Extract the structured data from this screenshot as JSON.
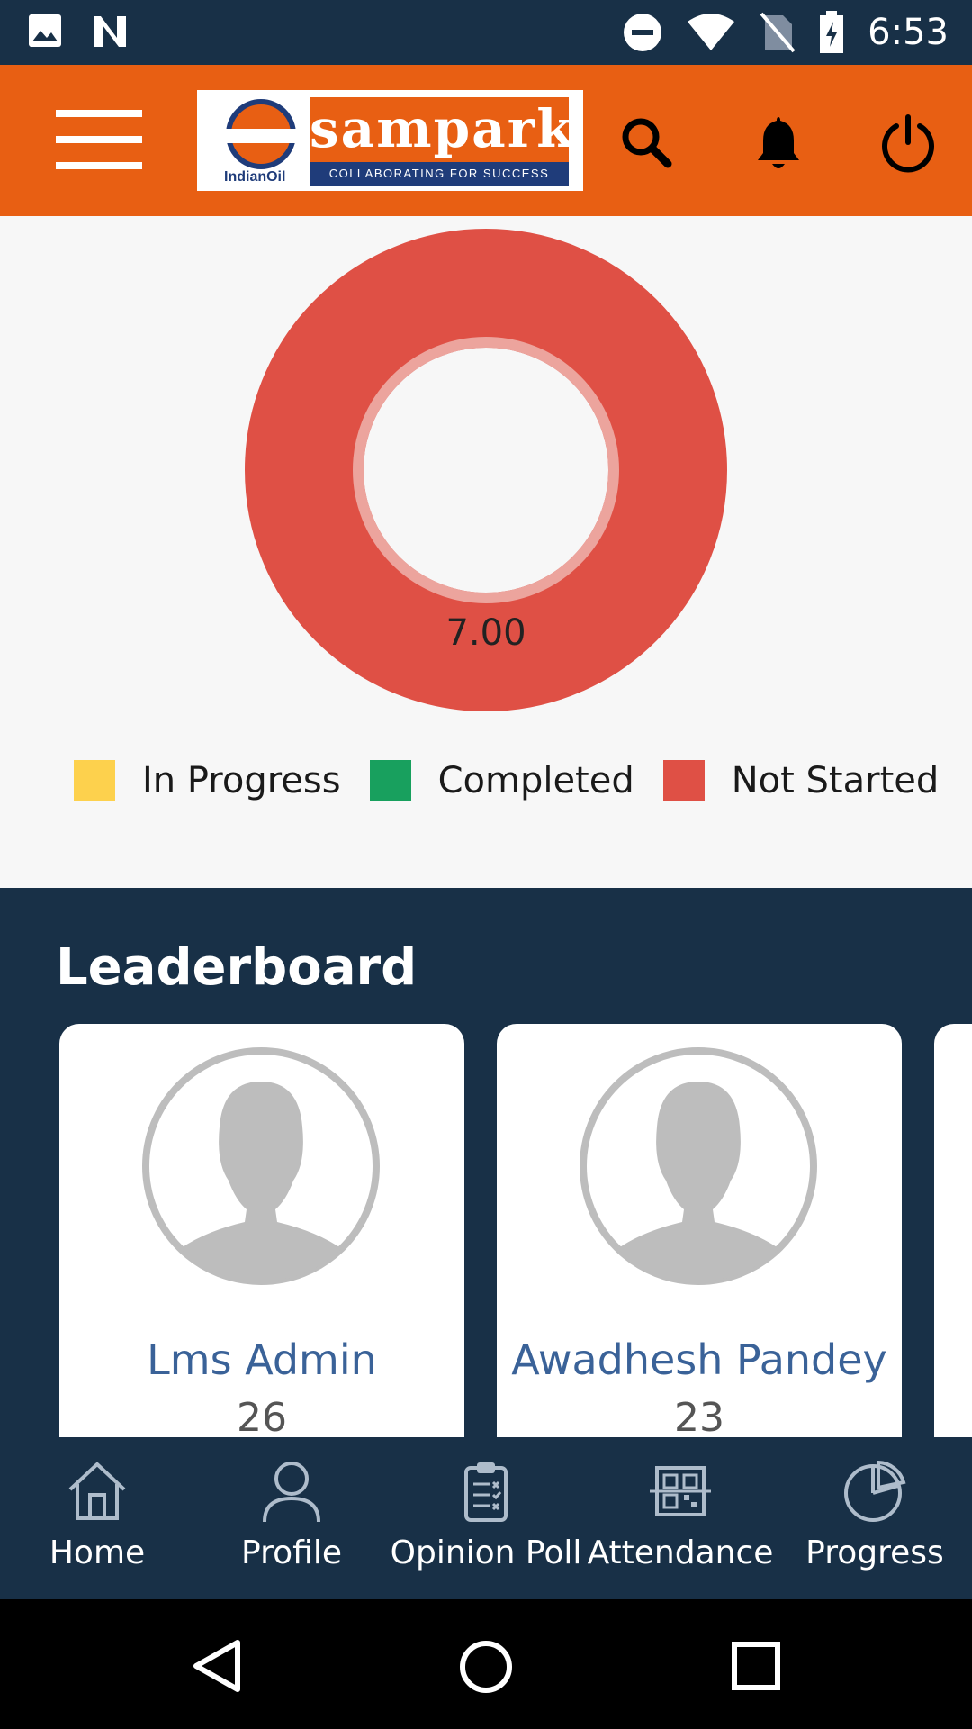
{
  "status_bar": {
    "time": "6:53",
    "icons": [
      "image-icon",
      "n-icon",
      "dnd-icon",
      "wifi-icon",
      "no-sim-icon",
      "battery-charging-icon"
    ]
  },
  "header": {
    "logo": {
      "company": "IndianOil",
      "brand": "sampark",
      "tagline": "COLLABORATING FOR SUCCESS"
    },
    "icons": [
      "menu-icon",
      "search-icon",
      "bell-icon",
      "power-icon"
    ],
    "accent_color": "#e85f13"
  },
  "chart_data": {
    "type": "pie",
    "variant": "donut",
    "labels": [
      "In Progress",
      "Completed",
      "Not Started"
    ],
    "values": [
      0,
      0,
      7.0
    ],
    "colors": [
      "#fdd14d",
      "#18a05e",
      "#df5045"
    ],
    "center_label": "7.00",
    "legend_position": "bottom"
  },
  "leaderboard": {
    "title": "Leaderboard",
    "entries": [
      {
        "name": "Lms Admin",
        "score": "26"
      },
      {
        "name": "Awadhesh Pandey",
        "score": "23"
      }
    ]
  },
  "bottom_nav": {
    "items": [
      {
        "label": "Home",
        "icon": "home-icon"
      },
      {
        "label": "Profile",
        "icon": "profile-icon"
      },
      {
        "label": "Opinion Poll",
        "icon": "clipboard-icon"
      },
      {
        "label": "Attendance",
        "icon": "qr-code-icon"
      },
      {
        "label": "Progress",
        "icon": "pie-chart-icon"
      }
    ]
  },
  "system_nav": [
    "back-icon",
    "home-circle-icon",
    "recents-icon"
  ]
}
